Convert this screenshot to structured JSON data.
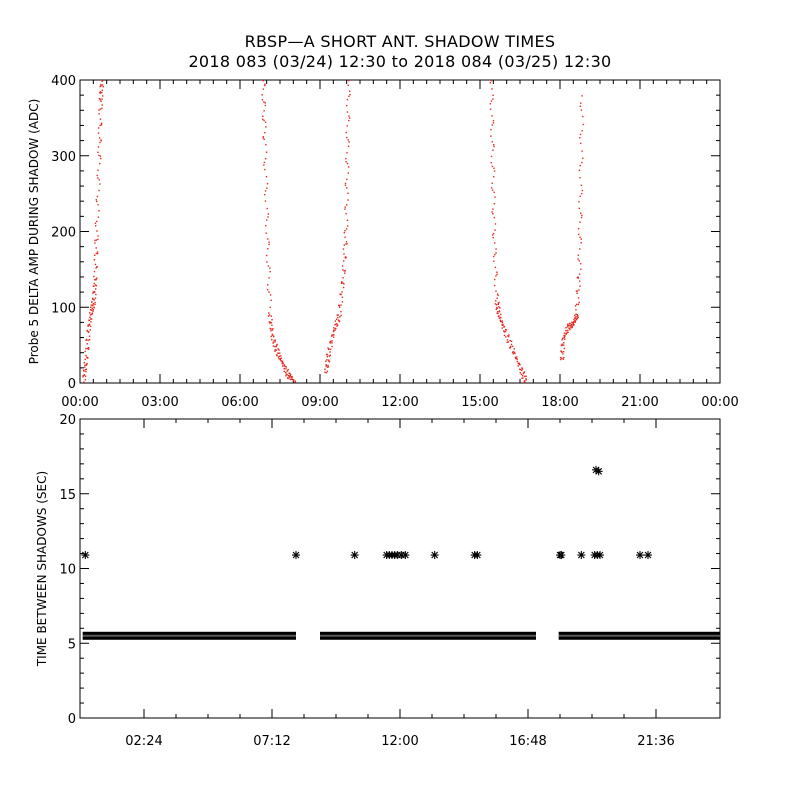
{
  "title_line1": "RBSP—A SHORT ANT. SHADOW TIMES",
  "title_line2": "2018 083 (03/24) 12:30 to 2018 084 (03/25) 12:30",
  "colors": {
    "data_red": "#e8281e",
    "axis": "#000000",
    "background": "#ffffff"
  },
  "chart_data": [
    {
      "type": "scatter",
      "ylabel": "Probe 5 DELTA AMP DURING SHADOW (ADC)",
      "xlabel": "",
      "x_unit": "hours",
      "xlim": [
        0,
        24
      ],
      "ylim": [
        0,
        400
      ],
      "x_tick_labels": [
        "00:00",
        "03:00",
        "06:00",
        "09:00",
        "12:00",
        "15:00",
        "18:00",
        "21:00",
        "00:00"
      ],
      "x_tick_values": [
        0,
        3,
        6,
        9,
        12,
        15,
        18,
        21,
        24
      ],
      "y_tick_labels": [
        "0",
        "100",
        "200",
        "300",
        "400"
      ],
      "y_tick_values": [
        0,
        100,
        200,
        300,
        400
      ],
      "grid": false,
      "series": [
        {
          "segments": [
            [
              [
                0.12,
                5
              ],
              [
                0.2,
                30
              ],
              [
                0.3,
                70
              ],
              [
                0.4,
                95
              ],
              [
                0.5,
                110
              ],
              [
                0.55,
                140
              ],
              [
                0.6,
                200
              ],
              [
                0.7,
                300
              ],
              [
                0.75,
                370
              ],
              [
                0.8,
                400
              ]
            ],
            [
              [
                8.0,
                5
              ],
              [
                7.8,
                10
              ],
              [
                7.6,
                25
              ],
              [
                7.4,
                40
              ],
              [
                7.2,
                60
              ],
              [
                7.1,
                90
              ],
              [
                7.0,
                200
              ],
              [
                6.9,
                320
              ],
              [
                6.85,
                400
              ]
            ],
            [
              [
                9.2,
                15
              ],
              [
                9.3,
                40
              ],
              [
                9.5,
                70
              ],
              [
                9.7,
                90
              ],
              [
                9.85,
                140
              ],
              [
                9.95,
                200
              ],
              [
                10.0,
                300
              ],
              [
                10.05,
                400
              ]
            ],
            [
              [
                16.7,
                2
              ],
              [
                16.5,
                20
              ],
              [
                16.2,
                45
              ],
              [
                15.9,
                70
              ],
              [
                15.7,
                90
              ],
              [
                15.6,
                110
              ],
              [
                15.5,
                200
              ],
              [
                15.45,
                300
              ],
              [
                15.4,
                400
              ]
            ],
            [
              [
                18.05,
                30
              ],
              [
                18.1,
                60
              ],
              [
                18.3,
                75
              ],
              [
                18.5,
                80
              ],
              [
                18.6,
                90
              ],
              [
                18.7,
                150
              ],
              [
                18.75,
                250
              ],
              [
                18.8,
                380
              ]
            ]
          ]
        }
      ]
    },
    {
      "type": "scatter",
      "ylabel": "TIME BETWEEN SHADOWS (SEC)",
      "xlabel": "",
      "x_unit": "hours",
      "xlim": [
        0,
        24
      ],
      "ylim": [
        0,
        20
      ],
      "x_tick_labels": [
        "02:24",
        "07:12",
        "12:00",
        "16:48",
        "21:36"
      ],
      "x_tick_values": [
        2.4,
        7.2,
        12.0,
        16.8,
        21.6
      ],
      "y_tick_labels": [
        "0",
        "5",
        "10",
        "15",
        "20"
      ],
      "y_tick_values": [
        0,
        5,
        10,
        15,
        20
      ],
      "grid": false,
      "band_value": 5.5,
      "band_segments": [
        [
          0.1,
          8.1
        ],
        [
          9.0,
          17.1
        ],
        [
          17.95,
          24.0
        ]
      ],
      "points": [
        [
          0.2,
          10.9
        ],
        [
          8.1,
          10.9
        ],
        [
          10.3,
          10.9
        ],
        [
          11.5,
          10.9
        ],
        [
          11.6,
          10.9
        ],
        [
          11.7,
          10.9
        ],
        [
          11.8,
          10.9
        ],
        [
          11.9,
          10.9
        ],
        [
          12.05,
          10.9
        ],
        [
          12.2,
          10.9
        ],
        [
          13.3,
          10.9
        ],
        [
          14.8,
          10.9
        ],
        [
          14.9,
          10.9
        ],
        [
          18.0,
          10.9
        ],
        [
          18.05,
          10.9
        ],
        [
          18.8,
          10.9
        ],
        [
          19.3,
          10.9
        ],
        [
          19.4,
          10.9
        ],
        [
          19.5,
          10.9
        ],
        [
          19.35,
          16.6
        ],
        [
          19.45,
          16.5
        ],
        [
          21.0,
          10.9
        ],
        [
          21.3,
          10.9
        ]
      ]
    }
  ]
}
